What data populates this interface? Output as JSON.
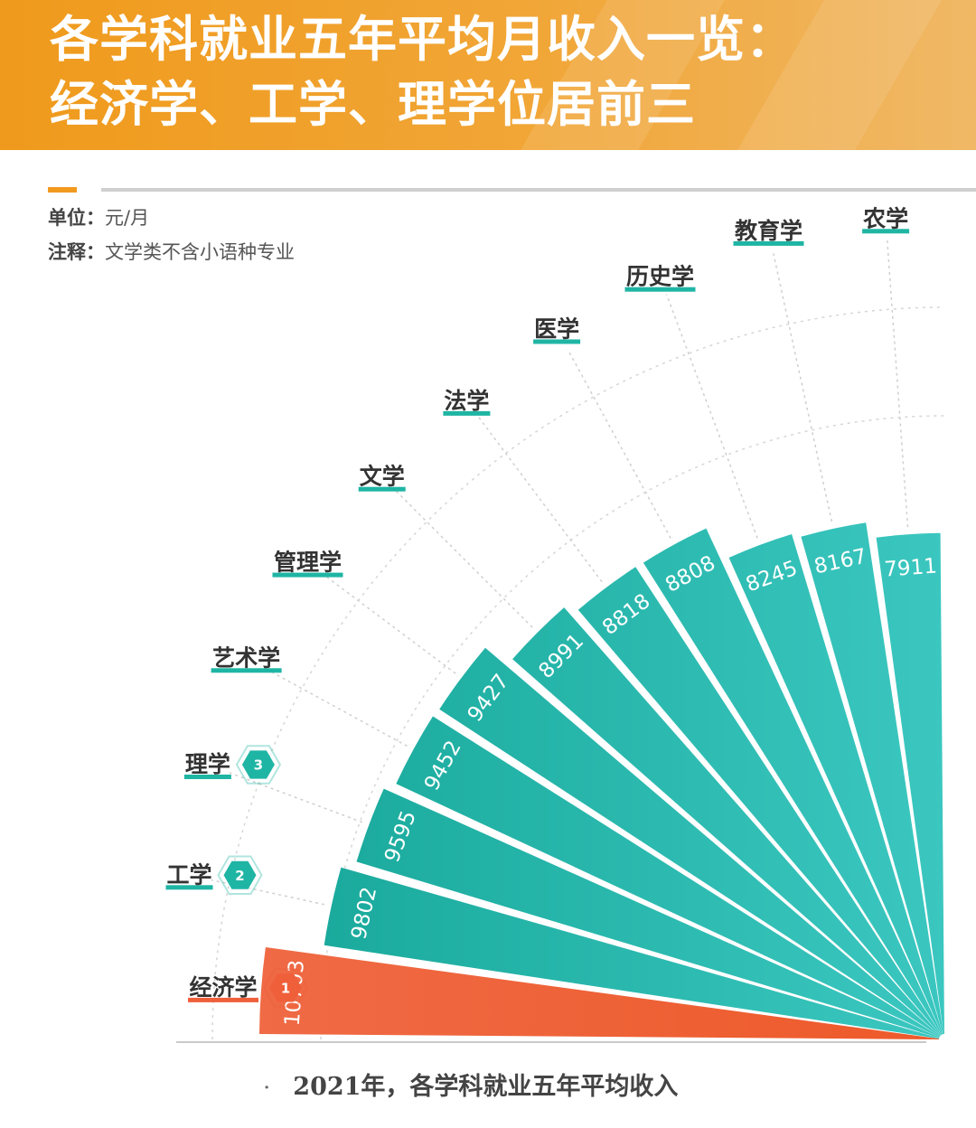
{
  "header": {
    "title_line1": "各学科就业五年平均月收入一览：",
    "title_line2": "经济学、工学、理学位居前三"
  },
  "notes": {
    "unit_label": "单位：",
    "unit_value": "元/月",
    "note_label": "注释：",
    "note_value": "文学类不含小语种专业"
  },
  "chart_data": {
    "type": "bar",
    "layout": "radial-fan",
    "title": "",
    "xlabel": "",
    "ylabel": "",
    "unit": "元/月",
    "categories": [
      "经济学",
      "工学",
      "理学",
      "艺术学",
      "管理学",
      "文学",
      "法学",
      "医学",
      "历史学",
      "教育学",
      "农学"
    ],
    "values": [
      10703,
      9802,
      9595,
      9452,
      9427,
      8991,
      8818,
      8808,
      8245,
      8167,
      7911
    ],
    "ranks": [
      "1",
      "2",
      "3",
      "",
      "",
      "",
      "",
      "",
      "",
      "",
      ""
    ],
    "colors": {
      "highlight": "#ef5f3a",
      "normal": "#1fb5a4",
      "label_underline_normal": "#1fb5a4",
      "label_underline_top": "#ef5f3a"
    },
    "caption": "2021年，各学科就业五年平均收入"
  },
  "caption": {
    "bullet": "·",
    "text": "2021年，各学科就业五年平均收入"
  }
}
